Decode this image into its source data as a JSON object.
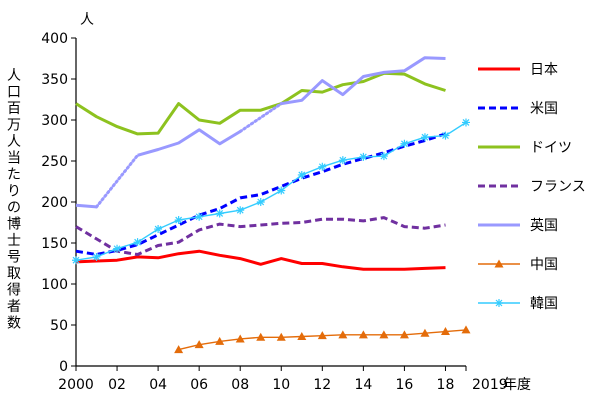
{
  "chart_data": {
    "type": "line",
    "y_unit": "人",
    "ylabel": "人口百万人当たりの博士号取得者数",
    "xlabel_suffix": "年度",
    "ylim": [
      0,
      400
    ],
    "y_ticks": [
      "0",
      "50",
      "100",
      "150",
      "200",
      "250",
      "300",
      "350",
      "400"
    ],
    "x_ticks": [
      "2000",
      "02",
      "04",
      "06",
      "08",
      "10",
      "12",
      "14",
      "16",
      "18",
      "2019"
    ],
    "xlim": [
      2000,
      2019
    ],
    "grid": false,
    "legend_position": "right",
    "series": [
      {
        "name": "日本",
        "color": "#ff0000",
        "style": "solid",
        "marker": "none",
        "points": [
          [
            2000,
            127
          ],
          [
            2001,
            128
          ],
          [
            2002,
            129
          ],
          [
            2003,
            133
          ],
          [
            2004,
            132
          ],
          [
            2005,
            137
          ],
          [
            2006,
            140
          ],
          [
            2007,
            135
          ],
          [
            2008,
            131
          ],
          [
            2009,
            124
          ],
          [
            2010,
            131
          ],
          [
            2011,
            125
          ],
          [
            2012,
            125
          ],
          [
            2013,
            121
          ],
          [
            2014,
            118
          ],
          [
            2015,
            118
          ],
          [
            2016,
            118
          ],
          [
            2017,
            119
          ],
          [
            2018,
            120
          ]
        ]
      },
      {
        "name": "米国",
        "color": "#0000ff",
        "style": "dashed",
        "marker": "none",
        "points": [
          [
            2000,
            140
          ],
          [
            2001,
            136
          ],
          [
            2002,
            141
          ],
          [
            2003,
            148
          ],
          [
            2004,
            160
          ],
          [
            2005,
            172
          ],
          [
            2006,
            184
          ],
          [
            2007,
            192
          ],
          [
            2008,
            205
          ],
          [
            2009,
            209
          ],
          [
            2010,
            219
          ],
          [
            2011,
            229
          ],
          [
            2012,
            237
          ],
          [
            2013,
            246
          ],
          [
            2014,
            253
          ],
          [
            2015,
            260
          ],
          [
            2016,
            268
          ],
          [
            2017,
            275
          ],
          [
            2018,
            283
          ]
        ]
      },
      {
        "name": "ドイツ",
        "color": "#8dc21f",
        "style": "solid",
        "marker": "none",
        "points": [
          [
            2000,
            320
          ],
          [
            2001,
            304
          ],
          [
            2002,
            292
          ],
          [
            2003,
            283
          ],
          [
            2004,
            284
          ],
          [
            2005,
            320
          ],
          [
            2006,
            300
          ],
          [
            2007,
            296
          ],
          [
            2008,
            312
          ],
          [
            2009,
            312
          ],
          [
            2010,
            320
          ],
          [
            2011,
            336
          ],
          [
            2012,
            334
          ],
          [
            2013,
            343
          ],
          [
            2014,
            347
          ],
          [
            2015,
            357
          ],
          [
            2016,
            356
          ],
          [
            2017,
            344
          ],
          [
            2018,
            336
          ]
        ]
      },
      {
        "name": "フランス",
        "color": "#7030a0",
        "style": "dashed",
        "marker": "none",
        "points": [
          [
            2000,
            170
          ],
          [
            2001,
            155
          ],
          [
            2002,
            140
          ],
          [
            2003,
            136
          ],
          [
            2004,
            147
          ],
          [
            2005,
            151
          ],
          [
            2006,
            166
          ],
          [
            2007,
            173
          ],
          [
            2008,
            170
          ],
          [
            2009,
            172
          ],
          [
            2010,
            174
          ],
          [
            2011,
            175
          ],
          [
            2012,
            179
          ],
          [
            2013,
            179
          ],
          [
            2014,
            177
          ],
          [
            2015,
            181
          ],
          [
            2016,
            170
          ],
          [
            2017,
            168
          ],
          [
            2018,
            172
          ]
        ]
      },
      {
        "name": "英国",
        "color": "#9999ff",
        "style": "solid",
        "marker": "none",
        "segments": [
          {
            "style": "solid",
            "points": [
              [
                2000,
                196
              ],
              [
                2001,
                194
              ]
            ]
          },
          {
            "style": "dotted",
            "points": [
              [
                2001,
                194
              ],
              [
                2003,
                257
              ]
            ]
          },
          {
            "style": "solid",
            "points": [
              [
                2003,
                257
              ],
              [
                2004,
                264
              ],
              [
                2005,
                272
              ],
              [
                2006,
                288
              ],
              [
                2007,
                271
              ],
              [
                2008,
                286
              ]
            ]
          },
          {
            "style": "dotted",
            "points": [
              [
                2008,
                286
              ],
              [
                2010,
                320
              ]
            ]
          },
          {
            "style": "solid",
            "points": [
              [
                2010,
                320
              ],
              [
                2011,
                324
              ],
              [
                2012,
                348
              ],
              [
                2013,
                331
              ],
              [
                2014,
                353
              ],
              [
                2015,
                358
              ],
              [
                2016,
                360
              ],
              [
                2017,
                376
              ],
              [
                2018,
                375
              ]
            ]
          }
        ]
      },
      {
        "name": "中国",
        "color": "#e46c0a",
        "style": "solid",
        "marker": "triangle",
        "points": [
          [
            2005,
            20
          ],
          [
            2006,
            26
          ],
          [
            2007,
            30
          ],
          [
            2008,
            33
          ],
          [
            2009,
            35
          ],
          [
            2010,
            35
          ],
          [
            2011,
            36
          ],
          [
            2012,
            37
          ],
          [
            2013,
            38
          ],
          [
            2014,
            38
          ],
          [
            2015,
            38
          ],
          [
            2016,
            38
          ],
          [
            2017,
            40
          ],
          [
            2018,
            42
          ],
          [
            2019,
            44
          ]
        ]
      },
      {
        "name": "韓国",
        "color": "#33ccff",
        "style": "solid",
        "marker": "asterisk",
        "points": [
          [
            2000,
            129
          ],
          [
            2001,
            133
          ],
          [
            2002,
            143
          ],
          [
            2003,
            151
          ],
          [
            2004,
            167
          ],
          [
            2005,
            178
          ],
          [
            2006,
            182
          ],
          [
            2007,
            186
          ],
          [
            2008,
            190
          ],
          [
            2009,
            200
          ],
          [
            2010,
            214
          ],
          [
            2011,
            233
          ],
          [
            2012,
            243
          ],
          [
            2013,
            251
          ],
          [
            2014,
            255
          ],
          [
            2015,
            256
          ],
          [
            2016,
            271
          ],
          [
            2017,
            279
          ],
          [
            2018,
            281
          ],
          [
            2019,
            297
          ]
        ]
      }
    ]
  }
}
